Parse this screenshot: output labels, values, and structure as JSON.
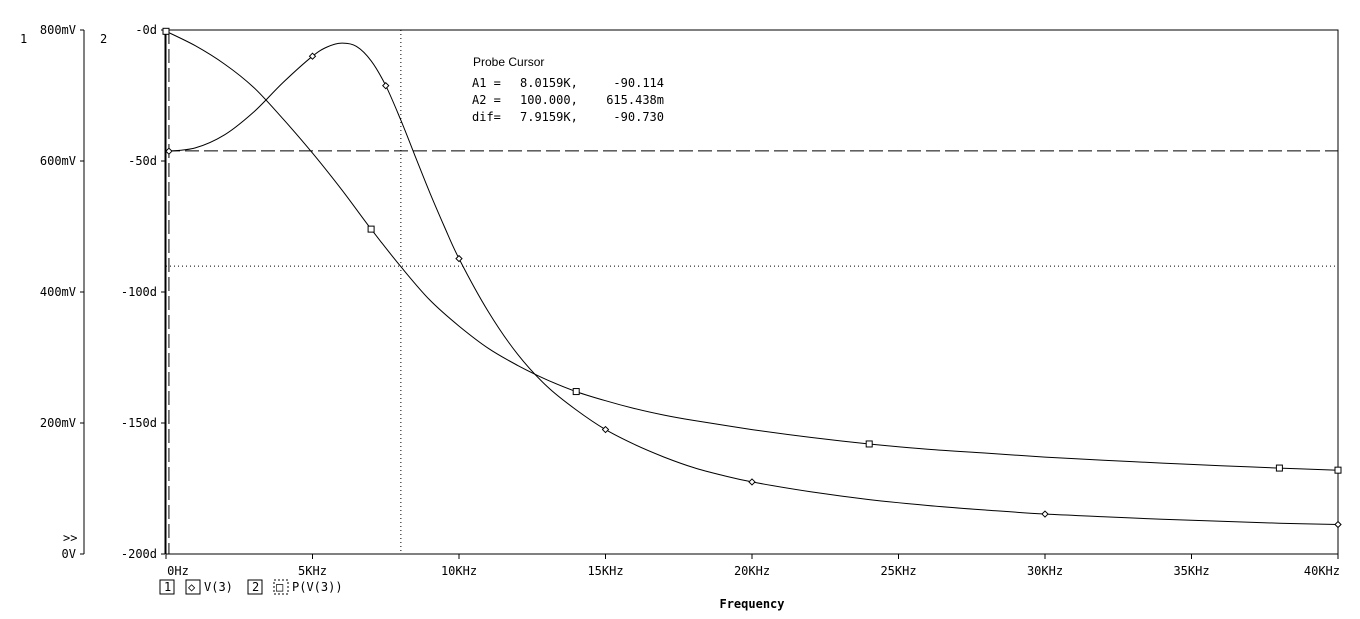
{
  "axis_ids": {
    "left": "1",
    "right": "2"
  },
  "more_indicator": ">>",
  "probe_cursor": {
    "title": "Probe Cursor",
    "rows": [
      {
        "label": "A1 =",
        "x": "8.0159K,",
        "y": "-90.114"
      },
      {
        "label": "A2 =",
        "x": "100.000,",
        "y": "615.438m"
      },
      {
        "label": "dif=",
        "x": "7.9159K,",
        "y": "-90.730"
      }
    ]
  },
  "legend": [
    {
      "box": "1",
      "marker": "◇",
      "label": "V(3)"
    },
    {
      "box": "2",
      "marker": "□",
      "label": "P(V(3))"
    }
  ],
  "chart_data": {
    "type": "line",
    "title": "",
    "xlabel": "Frequency",
    "x_unit": "Hz",
    "xlim": [
      0,
      40000
    ],
    "x_ticks": [
      {
        "v": 0,
        "label": "0Hz"
      },
      {
        "v": 5000,
        "label": "5KHz"
      },
      {
        "v": 10000,
        "label": "10KHz"
      },
      {
        "v": 15000,
        "label": "15KHz"
      },
      {
        "v": 20000,
        "label": "20KHz"
      },
      {
        "v": 25000,
        "label": "25KHz"
      },
      {
        "v": 30000,
        "label": "30KHz"
      },
      {
        "v": 35000,
        "label": "35KHz"
      },
      {
        "v": 40000,
        "label": "40KHz"
      }
    ],
    "y1": {
      "unit": "V",
      "ylim": [
        0,
        0.8
      ],
      "ticks": [
        {
          "v": 0.8,
          "label": "800mV"
        },
        {
          "v": 0.6,
          "label": "600mV"
        },
        {
          "v": 0.4,
          "label": "400mV"
        },
        {
          "v": 0.2,
          "label": "200mV"
        },
        {
          "v": 0,
          "label": "0V"
        }
      ]
    },
    "y2": {
      "unit": "deg",
      "ylim": [
        -200,
        0
      ],
      "ticks": [
        {
          "v": 0,
          "label": "-0d"
        },
        {
          "v": -50,
          "label": "-50d"
        },
        {
          "v": -100,
          "label": "-100d"
        },
        {
          "v": -150,
          "label": "-150d"
        },
        {
          "v": -200,
          "label": "-200d"
        }
      ]
    },
    "series": [
      {
        "name": "V(3)",
        "axis": "y1",
        "marker": "diamond",
        "x": [
          100,
          1000,
          2000,
          3000,
          4000,
          5000,
          5500,
          6000,
          6500,
          7000,
          7500,
          8000,
          8500,
          9000,
          9500,
          10000,
          11000,
          12000,
          13000,
          14000,
          15000,
          16000,
          17000,
          18000,
          19000,
          20000,
          22000,
          24000,
          26000,
          28000,
          30000,
          32000,
          34000,
          36000,
          38000,
          40000
        ],
        "y": [
          0.615,
          0.62,
          0.64,
          0.675,
          0.72,
          0.76,
          0.774,
          0.78,
          0.775,
          0.753,
          0.715,
          0.664,
          0.608,
          0.552,
          0.5,
          0.451,
          0.37,
          0.305,
          0.256,
          0.22,
          0.19,
          0.167,
          0.148,
          0.132,
          0.12,
          0.11,
          0.095,
          0.083,
          0.074,
          0.067,
          0.061,
          0.057,
          0.053,
          0.05,
          0.047,
          0.045
        ]
      },
      {
        "name": "P(V(3))",
        "axis": "y2",
        "marker": "square",
        "x": [
          0,
          1000,
          2000,
          3000,
          4000,
          5000,
          6000,
          7000,
          8000,
          9000,
          10000,
          11000,
          12000,
          13000,
          14000,
          15000,
          16000,
          17000,
          18000,
          20000,
          22000,
          24000,
          26000,
          28000,
          30000,
          32000,
          34000,
          36000,
          38000,
          40000
        ],
        "y": [
          -0.5,
          -6,
          -13,
          -22,
          -34,
          -47,
          -61,
          -76,
          -90.1,
          -103,
          -113,
          -121.5,
          -128,
          -133.5,
          -138,
          -141.5,
          -144.5,
          -147,
          -149,
          -152.5,
          -155.5,
          -158,
          -160,
          -161.5,
          -163,
          -164.2,
          -165.3,
          -166.3,
          -167.2,
          -168
        ]
      }
    ],
    "cursor_lines": [
      {
        "axis": "x",
        "value": 8015.9,
        "style": "dotted"
      },
      {
        "axis": "y2",
        "value": -90.114,
        "style": "dotted"
      },
      {
        "axis": "x",
        "value": 100,
        "style": "dashed"
      },
      {
        "axis": "y1",
        "value": 0.615438,
        "style": "dashed"
      }
    ]
  }
}
